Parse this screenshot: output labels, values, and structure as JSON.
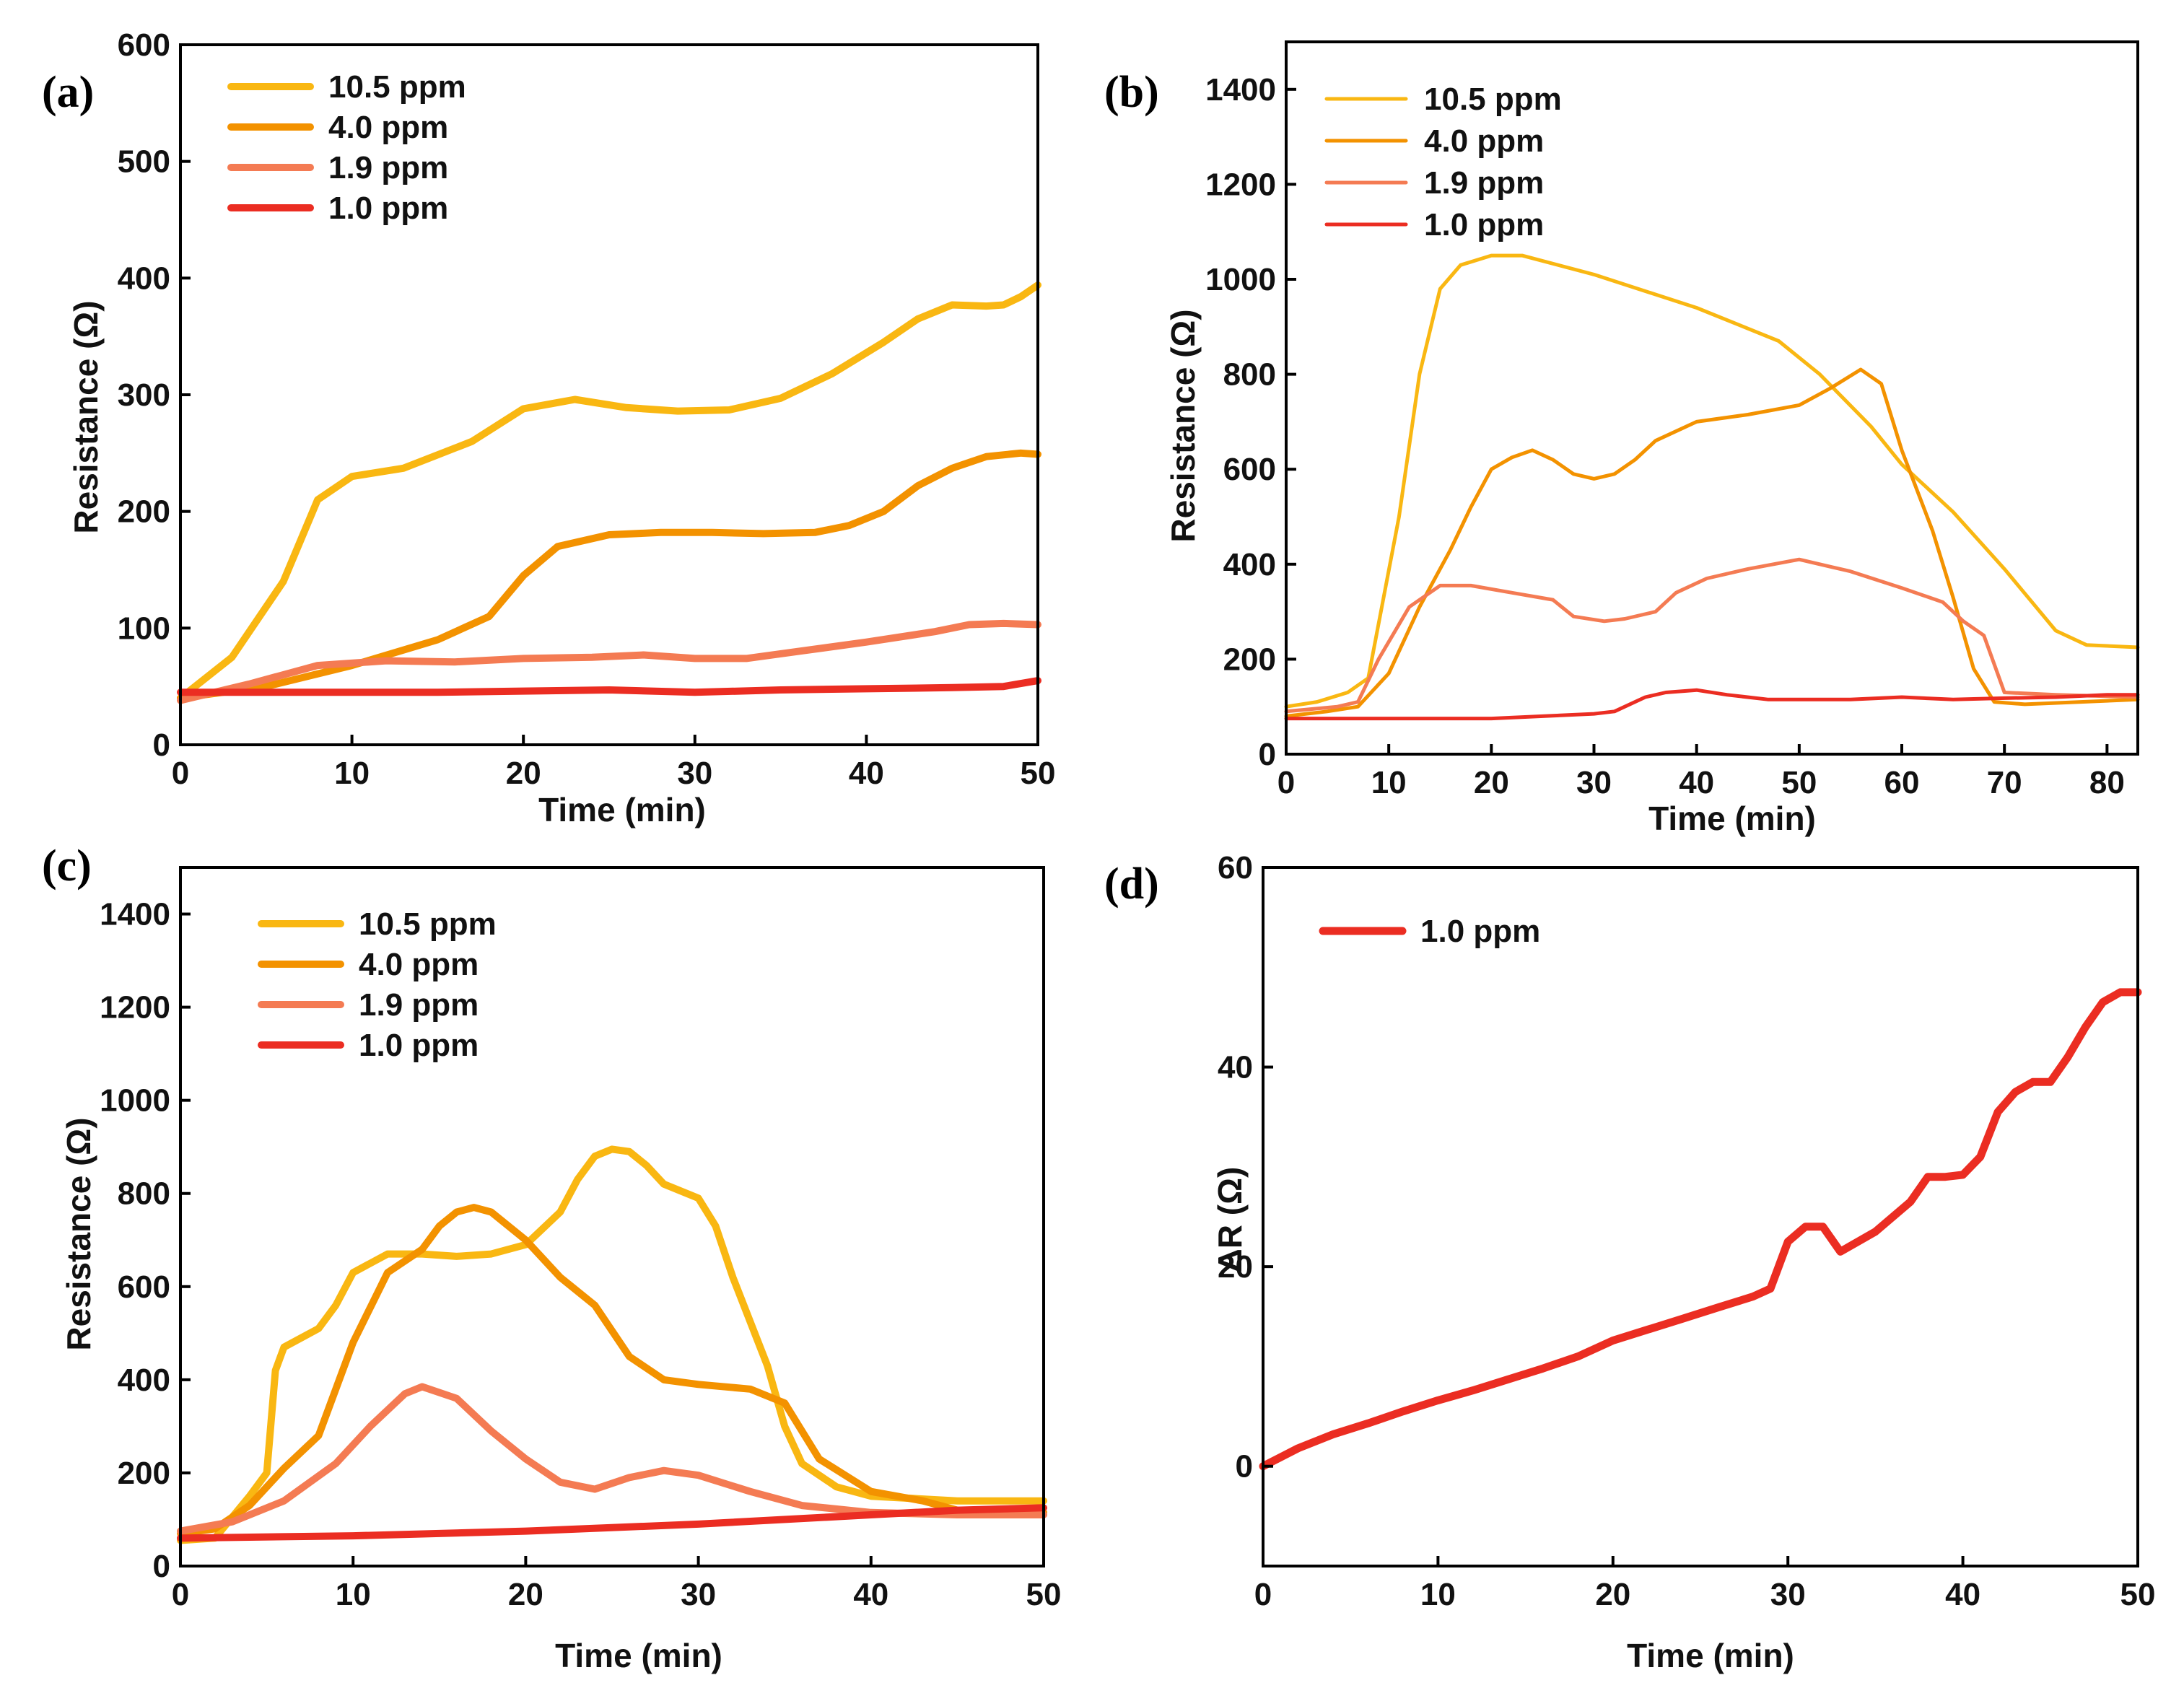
{
  "colors": {
    "c105": "#f9b712",
    "c40": "#f39200",
    "c19": "#f47b53",
    "c10": "#eb2d22"
  },
  "chart_data": [
    {
      "type": "line",
      "panel_label": "(a)",
      "xlabel": "Time (min)",
      "ylabel": "Resistance (Ω)",
      "xlim": [
        0,
        50
      ],
      "ylim": [
        0,
        600
      ],
      "xticks": [
        0,
        10,
        20,
        30,
        40,
        50
      ],
      "yticks": [
        0,
        100,
        200,
        300,
        400,
        500,
        600
      ],
      "legend_position": "top-left",
      "series": [
        {
          "name": "10.5 ppm",
          "color": "#f9b712",
          "width": 10,
          "x": [
            0,
            3,
            6,
            8,
            10,
            13,
            17,
            20,
            23,
            26,
            29,
            32,
            35,
            38,
            41,
            43,
            45,
            47,
            48,
            49,
            50
          ],
          "y": [
            40,
            75,
            140,
            210,
            230,
            237,
            260,
            288,
            296,
            289,
            286,
            287,
            297,
            318,
            345,
            365,
            377,
            376,
            377,
            384,
            394
          ]
        },
        {
          "name": "4.0 ppm",
          "color": "#f39200",
          "width": 10,
          "x": [
            0,
            5,
            10,
            15,
            18,
            20,
            22,
            25,
            28,
            31,
            34,
            37,
            39,
            41,
            43,
            45,
            47,
            49,
            50
          ],
          "y": [
            40,
            50,
            68,
            90,
            110,
            145,
            170,
            180,
            182,
            182,
            181,
            182,
            188,
            200,
            222,
            237,
            247,
            250,
            249
          ]
        },
        {
          "name": "1.9 ppm",
          "color": "#f47b53",
          "width": 10,
          "x": [
            0,
            4,
            8,
            12,
            16,
            20,
            24,
            27,
            30,
            33,
            36,
            40,
            44,
            46,
            48,
            50
          ],
          "y": [
            38,
            52,
            68,
            72,
            71,
            74,
            75,
            77,
            74,
            74,
            80,
            88,
            97,
            103,
            104,
            103
          ]
        },
        {
          "name": "1.0 ppm",
          "color": "#eb2d22",
          "width": 10,
          "x": [
            0,
            5,
            10,
            15,
            20,
            25,
            30,
            35,
            40,
            45,
            48,
            50
          ],
          "y": [
            45,
            45,
            45,
            45,
            46,
            47,
            45,
            47,
            48,
            49,
            50,
            55
          ]
        }
      ]
    },
    {
      "type": "line",
      "panel_label": "(b)",
      "xlabel": "Time (min)",
      "ylabel": "Resistance (Ω)",
      "xlim": [
        0,
        83
      ],
      "ylim": [
        0,
        1500
      ],
      "xticks": [
        0,
        10,
        20,
        30,
        40,
        50,
        60,
        70,
        80
      ],
      "yticks": [
        0,
        200,
        400,
        600,
        800,
        1000,
        1200,
        1400
      ],
      "legend_position": "top-left",
      "series": [
        {
          "name": "10.5 ppm",
          "color": "#f9b712",
          "width": 5,
          "x": [
            0,
            3,
            6,
            8,
            11,
            13,
            15,
            17,
            20,
            23,
            30,
            40,
            48,
            52,
            57,
            60,
            65,
            70,
            75,
            78,
            83
          ],
          "y": [
            100,
            110,
            130,
            160,
            500,
            800,
            980,
            1030,
            1050,
            1050,
            1010,
            940,
            870,
            800,
            690,
            610,
            510,
            390,
            260,
            230,
            225
          ]
        },
        {
          "name": "4.0 ppm",
          "color": "#f39200",
          "width": 5,
          "x": [
            0,
            4,
            7,
            10,
            13,
            16,
            18,
            20,
            22,
            24,
            26,
            28,
            30,
            32,
            34,
            36,
            40,
            45,
            50,
            53,
            56,
            58,
            60,
            63,
            65,
            67,
            69,
            72,
            83
          ],
          "y": [
            80,
            90,
            100,
            170,
            310,
            430,
            520,
            600,
            625,
            640,
            620,
            590,
            580,
            590,
            620,
            660,
            700,
            715,
            735,
            770,
            810,
            780,
            640,
            470,
            330,
            180,
            110,
            105,
            115
          ]
        },
        {
          "name": "1.9 ppm",
          "color": "#f47b53",
          "width": 5,
          "x": [
            0,
            5,
            7,
            9,
            12,
            15,
            18,
            22,
            26,
            28,
            31,
            33,
            36,
            38,
            41,
            45,
            50,
            55,
            60,
            64,
            66,
            68,
            70,
            75,
            83
          ],
          "y": [
            90,
            100,
            110,
            200,
            310,
            355,
            355,
            340,
            325,
            290,
            280,
            285,
            300,
            340,
            370,
            390,
            410,
            385,
            350,
            320,
            280,
            250,
            130,
            125,
            120
          ]
        },
        {
          "name": "1.0 ppm",
          "color": "#eb2d22",
          "width": 5,
          "x": [
            0,
            10,
            20,
            25,
            30,
            32,
            35,
            37,
            40,
            43,
            47,
            50,
            55,
            60,
            65,
            70,
            75,
            80,
            83
          ],
          "y": [
            75,
            75,
            75,
            80,
            85,
            90,
            120,
            130,
            135,
            125,
            115,
            115,
            115,
            120,
            115,
            118,
            120,
            125,
            125
          ]
        }
      ]
    },
    {
      "type": "line",
      "panel_label": "(c)",
      "xlabel": "Time (min)",
      "ylabel": "Resistance (Ω)",
      "xlim": [
        0,
        50
      ],
      "ylim": [
        0,
        1500
      ],
      "xticks": [
        0,
        10,
        20,
        30,
        40,
        50
      ],
      "yticks": [
        0,
        200,
        400,
        600,
        800,
        1000,
        1200,
        1400
      ],
      "legend_position": "top-left",
      "series": [
        {
          "name": "10.5 ppm",
          "color": "#f9b712",
          "width": 10,
          "x": [
            0,
            2,
            4,
            5,
            5.5,
            6,
            7,
            8,
            9,
            10,
            12,
            14,
            16,
            18,
            20,
            22,
            23,
            24,
            25,
            26,
            27,
            28,
            30,
            31,
            32,
            34,
            35,
            36,
            38,
            40,
            45,
            50
          ],
          "y": [
            55,
            60,
            150,
            200,
            420,
            470,
            490,
            510,
            560,
            630,
            670,
            670,
            665,
            670,
            690,
            760,
            830,
            880,
            895,
            890,
            860,
            820,
            790,
            730,
            620,
            430,
            300,
            220,
            170,
            150,
            140,
            140
          ]
        },
        {
          "name": "4.0 ppm",
          "color": "#f39200",
          "width": 10,
          "x": [
            0,
            2,
            4,
            6,
            8,
            10,
            12,
            14,
            15,
            16,
            17,
            18,
            20,
            22,
            24,
            26,
            28,
            30,
            33,
            35,
            37,
            40,
            43,
            45,
            47,
            50
          ],
          "y": [
            70,
            80,
            130,
            210,
            280,
            480,
            630,
            680,
            730,
            760,
            770,
            760,
            700,
            620,
            560,
            450,
            400,
            390,
            380,
            350,
            230,
            160,
            140,
            120,
            115,
            115
          ]
        },
        {
          "name": "1.9 ppm",
          "color": "#f47b53",
          "width": 10,
          "x": [
            0,
            3,
            6,
            9,
            11,
            13,
            14,
            16,
            18,
            20,
            22,
            24,
            26,
            28,
            30,
            33,
            36,
            40,
            45,
            50
          ],
          "y": [
            75,
            95,
            140,
            220,
            300,
            370,
            385,
            360,
            290,
            230,
            180,
            165,
            190,
            205,
            195,
            160,
            130,
            115,
            110,
            110
          ]
        },
        {
          "name": "1.0 ppm",
          "color": "#eb2d22",
          "width": 10,
          "x": [
            0,
            10,
            20,
            30,
            40,
            45,
            50
          ],
          "y": [
            60,
            65,
            75,
            90,
            110,
            120,
            125
          ]
        }
      ]
    },
    {
      "type": "line",
      "panel_label": "(d)",
      "xlabel": "Time (min)",
      "ylabel": "ΔR (Ω)",
      "xlim": [
        0,
        50
      ],
      "ylim": [
        -10,
        60
      ],
      "xticks": [
        0,
        10,
        20,
        30,
        40,
        50
      ],
      "yticks": [
        0,
        20,
        40,
        60
      ],
      "legend_position": "top-left",
      "series": [
        {
          "name": "1.0 ppm",
          "color": "#eb2d22",
          "width": 11,
          "x": [
            0,
            2,
            4,
            6,
            8,
            10,
            12,
            14,
            16,
            18,
            20,
            22,
            24,
            26,
            28,
            29,
            30,
            31,
            32,
            33,
            35,
            37,
            38,
            39,
            40,
            41,
            42,
            43,
            44,
            45,
            46,
            47,
            48,
            49,
            50
          ],
          "y": [
            0,
            1.8,
            3.2,
            4.3,
            5.5,
            6.6,
            7.6,
            8.7,
            9.8,
            11,
            12.6,
            13.7,
            14.8,
            15.9,
            17.0,
            17.8,
            22.5,
            24.0,
            24.0,
            21.5,
            23.5,
            26.5,
            29.0,
            29.0,
            29.2,
            31.0,
            35.5,
            37.5,
            38.5,
            38.5,
            41.0,
            44.0,
            46.5,
            47.5,
            47.5
          ]
        }
      ]
    }
  ]
}
